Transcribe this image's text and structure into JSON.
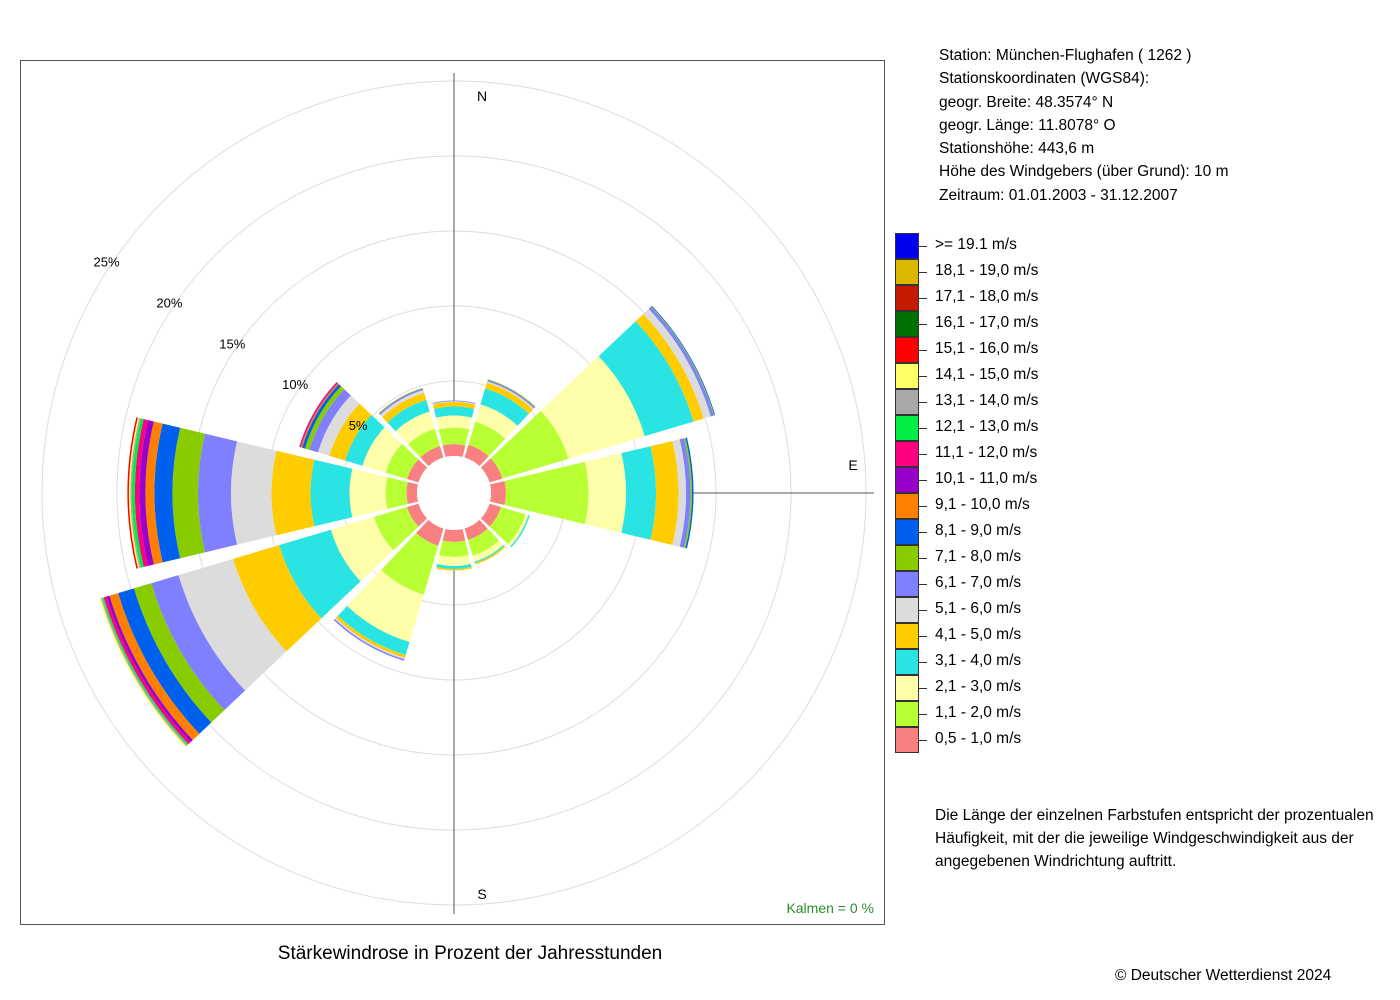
{
  "station": {
    "line_station": "Station:  München-Flughafen  ( 1262 )",
    "line_coords_header": "Stationskoordinaten (WGS84):",
    "line_lat": "geogr. Breite: 48.3574° N",
    "line_lon": "geogr. Länge: 11.8078° O",
    "line_height": "Stationshöhe: 443,6 m",
    "line_anemometer": "Höhe des Windgebers (über Grund): 10 m",
    "line_period": "Zeitraum: 01.01.2003 - 31.12.2007"
  },
  "legend": [
    {
      "label": ">= 19.1 m/s",
      "color": "#0000ee"
    },
    {
      "label": "18,1 - 19,0 m/s",
      "color": "#dab800"
    },
    {
      "label": "17,1 - 18,0 m/s",
      "color": "#c41a00"
    },
    {
      "label": "16,1 - 17,0 m/s",
      "color": "#007000"
    },
    {
      "label": "15,1 - 16,0 m/s",
      "color": "#ff0000"
    },
    {
      "label": "14,1 - 15,0 m/s",
      "color": "#ffff66"
    },
    {
      "label": "13,1 - 14,0 m/s",
      "color": "#a8a8a8"
    },
    {
      "label": "12,1 - 13,0 m/s",
      "color": "#00ee44"
    },
    {
      "label": "11,1 - 12,0 m/s",
      "color": "#ff0080"
    },
    {
      "label": "10,1 - 11,0 m/s",
      "color": "#9900cc"
    },
    {
      "label": "9,1 - 10,0 m/s",
      "color": "#ff8000"
    },
    {
      "label": "8,1 - 9,0 m/s",
      "color": "#0060ee"
    },
    {
      "label": "7,1 - 8,0 m/s",
      "color": "#88cc00"
    },
    {
      "label": "6,1 - 7,0 m/s",
      "color": "#8080ff"
    },
    {
      "label": "5,1 - 6,0 m/s",
      "color": "#dcdcdc"
    },
    {
      "label": "4,1 - 5,0 m/s",
      "color": "#ffcc00"
    },
    {
      "label": "3,1 - 4,0 m/s",
      "color": "#2ae4e4"
    },
    {
      "label": "2,1 - 3,0 m/s",
      "color": "#ffffaa"
    },
    {
      "label": "1,1 - 2,0 m/s",
      "color": "#b8ff33"
    },
    {
      "label": "0,5 - 1,0 m/s",
      "color": "#f88080"
    }
  ],
  "note": "Die Länge der einzelnen Farbstufen entspricht der prozentualen Häufigkeit, mit der die jeweilige Windgeschwindigkeit aus der angegebenen Windrichtung auftritt.",
  "calm": "Kalmen  =  0 %",
  "copyright": "© Deutscher Wetterdienst  2024",
  "chart_data": {
    "type": "wind-rose",
    "title": "Stärkewindrose in Prozent der Jahresstunden",
    "direction_labels": {
      "north": "N",
      "east": "E",
      "south": "S"
    },
    "ring_values": [
      5,
      10,
      15,
      20,
      25
    ],
    "ring_labels": [
      "5%",
      "10%",
      "15%",
      "20%",
      "25%"
    ],
    "sector_width_deg": 30,
    "speed_classes": [
      "0,5 - 1,0 m/s",
      "1,1 - 2,0 m/s",
      "2,1 - 3,0 m/s",
      "3,1 - 4,0 m/s",
      "4,1 - 5,0 m/s",
      "5,1 - 6,0 m/s",
      "6,1 - 7,0 m/s",
      "7,1 - 8,0 m/s",
      "8,1 - 9,0 m/s",
      "9,1 - 10,0 m/s",
      "10,1 - 11,0 m/s",
      "11,1 - 12,0 m/s",
      "12,1 - 13,0 m/s",
      "13,1 - 14,0 m/s",
      "14,1 - 15,0 m/s",
      "15,1 - 16,0 m/s",
      "16,1 - 17,0 m/s",
      "17,1 - 18,0 m/s",
      "18,1 - 19,0 m/s",
      ">= 19.1 m/s"
    ],
    "sectors": [
      {
        "direction_deg": 0,
        "values": [
          0.8,
          1.1,
          0.8,
          0.6,
          0.3,
          0.05,
          0.05,
          0,
          0,
          0,
          0,
          0,
          0,
          0,
          0,
          0,
          0,
          0,
          0,
          0
        ]
      },
      {
        "direction_deg": 30,
        "values": [
          0.9,
          1.6,
          1.2,
          1.1,
          0.4,
          0.1,
          0.1,
          0.05,
          0,
          0,
          0,
          0,
          0,
          0,
          0,
          0,
          0,
          0,
          0,
          0
        ]
      },
      {
        "direction_deg": 60,
        "values": [
          0.9,
          4.6,
          5.3,
          3.4,
          0.7,
          0.5,
          0.2,
          0.05,
          0.05,
          0,
          0,
          0,
          0,
          0,
          0,
          0,
          0,
          0,
          0,
          0
        ]
      },
      {
        "direction_deg": 90,
        "values": [
          1.0,
          5.5,
          2.5,
          2.0,
          1.5,
          0.5,
          0.3,
          0.1,
          0.1,
          0,
          0,
          0,
          0,
          0,
          0,
          0,
          0,
          0,
          0,
          0
        ]
      },
      {
        "direction_deg": 120,
        "values": [
          0.8,
          1.7,
          0.2,
          0.1,
          0,
          0,
          0,
          0,
          0,
          0,
          0,
          0,
          0,
          0,
          0,
          0,
          0,
          0,
          0,
          0
        ]
      },
      {
        "direction_deg": 150,
        "values": [
          0.8,
          1.1,
          0.4,
          0.1,
          0.1,
          0,
          0,
          0,
          0,
          0,
          0,
          0,
          0,
          0,
          0,
          0,
          0,
          0,
          0,
          0
        ]
      },
      {
        "direction_deg": 180,
        "values": [
          0.8,
          1.0,
          0.6,
          0.2,
          0.1,
          0,
          0,
          0,
          0,
          0,
          0,
          0,
          0,
          0,
          0,
          0,
          0,
          0,
          0,
          0
        ]
      },
      {
        "direction_deg": 210,
        "values": [
          1.2,
          3.4,
          3.3,
          0.9,
          0.2,
          0.1,
          0.1,
          0,
          0,
          0,
          0,
          0,
          0,
          0,
          0,
          0,
          0,
          0,
          0,
          0
        ]
      },
      {
        "direction_deg": 240,
        "values": [
          0.8,
          2.3,
          3.0,
          3.6,
          3.2,
          3.8,
          1.9,
          1.2,
          1.1,
          0.6,
          0.2,
          0.2,
          0.1,
          0.1,
          0.1,
          0,
          0,
          0,
          0,
          0
        ]
      },
      {
        "direction_deg": 270,
        "values": [
          0.7,
          1.4,
          2.4,
          2.6,
          2.6,
          2.7,
          2.2,
          1.7,
          1.2,
          0.6,
          0.4,
          0.3,
          0.2,
          0.1,
          0.1,
          0.1,
          0,
          0,
          0,
          0
        ]
      },
      {
        "direction_deg": 300,
        "values": [
          0.8,
          1.5,
          1.6,
          1.2,
          1.1,
          0.8,
          0.6,
          0.3,
          0.2,
          0.1,
          0.05,
          0.05,
          0,
          0,
          0,
          0,
          0,
          0,
          0,
          0
        ]
      },
      {
        "direction_deg": 330,
        "values": [
          0.8,
          1.2,
          1.2,
          0.8,
          0.5,
          0.2,
          0.1,
          0.05,
          0,
          0,
          0,
          0,
          0,
          0,
          0,
          0,
          0,
          0,
          0,
          0
        ]
      }
    ]
  }
}
